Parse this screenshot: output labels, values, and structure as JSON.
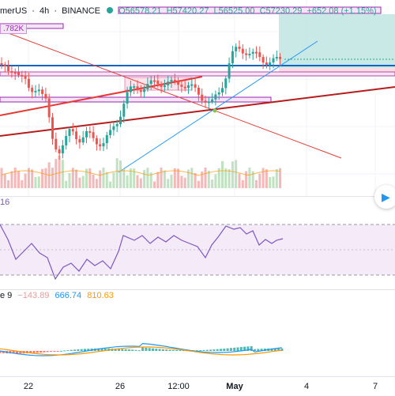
{
  "legend": {
    "symbol": "merUS",
    "interval": "4h",
    "exchange": "BINANCE",
    "open": "O56578.21",
    "high": "H57420.27",
    "low": "L56525.00",
    "close": "C57230.29",
    "change": "+652.08 (+1.15%)"
  },
  "price_tag": ".782K",
  "rsi": {
    "value_label": "16"
  },
  "macd": {
    "name_label": "e 9",
    "histogram": "−143.89",
    "macd": "666.74",
    "signal": "810.63"
  },
  "time_axis": {
    "ticks": [
      {
        "label": "22"
      },
      {
        "label": "26"
      },
      {
        "label": "12:00"
      },
      {
        "label": "May"
      },
      {
        "label": "4"
      },
      {
        "label": "7"
      }
    ]
  },
  "nav": {
    "icon": "play-arrow-icon"
  },
  "colors": {
    "up": "#26a69a",
    "down": "#ef5350",
    "rsi_line": "#7e57c2",
    "macd_line": "#2196f3",
    "signal_line": "#ff9800"
  }
}
